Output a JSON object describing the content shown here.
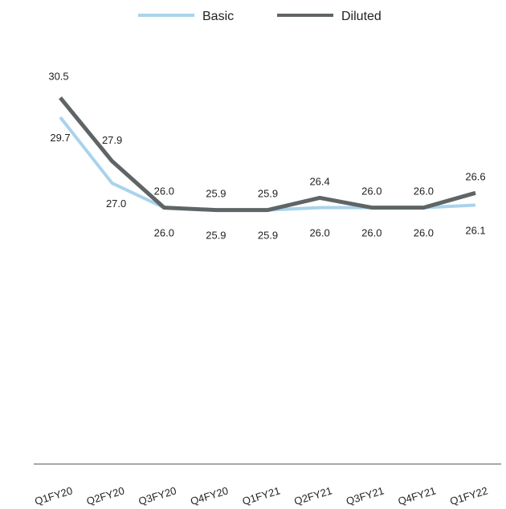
{
  "chart_data": {
    "type": "line",
    "categories": [
      "Q1FY20",
      "Q2FY20",
      "Q3FY20",
      "Q4FY20",
      "Q1FY21",
      "Q2FY21",
      "Q3FY21",
      "Q4FY21",
      "Q1FY22"
    ],
    "series": [
      {
        "name": "Basic",
        "values": [
          29.7,
          27.0,
          26.0,
          25.9,
          25.9,
          26.0,
          26.0,
          26.0,
          26.1
        ],
        "color": "#a9d3ec"
      },
      {
        "name": "Diluted",
        "values": [
          30.5,
          27.9,
          26.0,
          25.9,
          25.9,
          26.4,
          26.0,
          26.0,
          26.6
        ],
        "color": "#5f6566"
      }
    ],
    "data_labels": {
      "Basic": [
        "29.7",
        "27.0",
        "26.0",
        "25.9",
        "25.9",
        "26.0",
        "26.0",
        "26.0",
        "26.1"
      ],
      "Diluted": [
        "30.5",
        "27.9",
        "26.0",
        "25.9",
        "25.9",
        "26.4",
        "26.0",
        "26.0",
        "26.6"
      ]
    },
    "title": "",
    "xlabel": "",
    "ylabel": "",
    "ylim": [
      15.5,
      34.5
    ],
    "legend": "top-center",
    "grid": false,
    "axis_color": "#8c8c8c"
  }
}
